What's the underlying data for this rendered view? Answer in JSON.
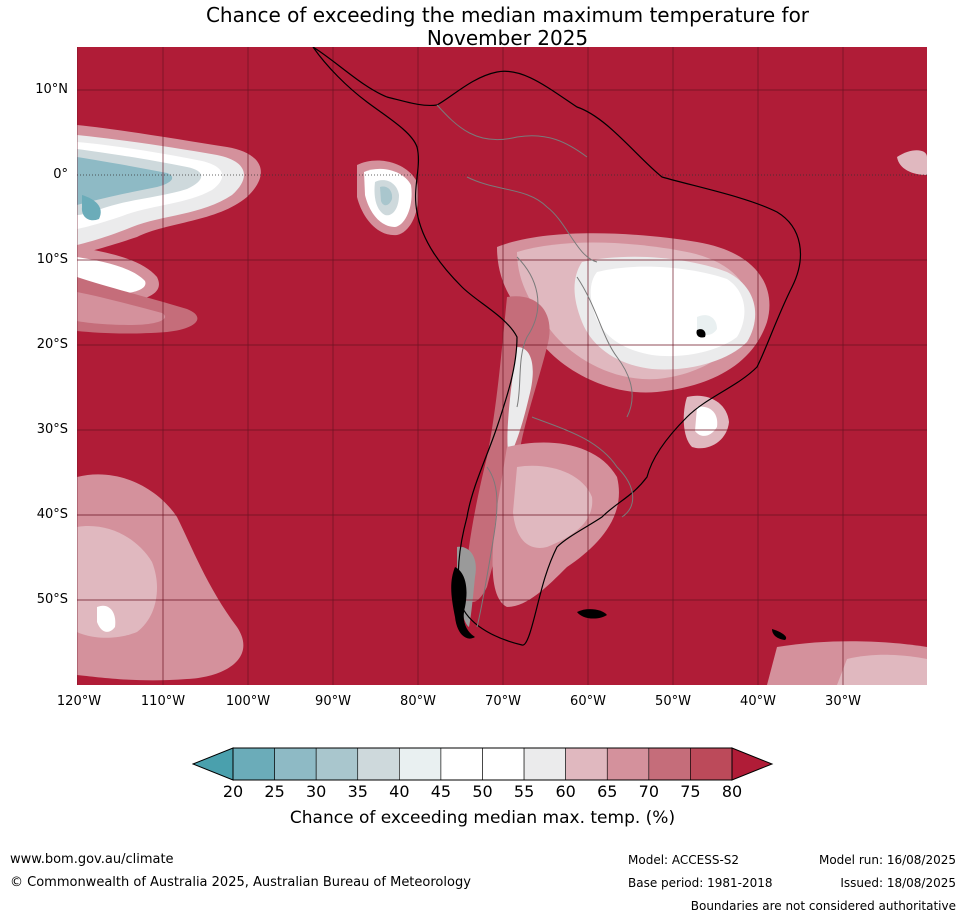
{
  "title_line1": "Chance of exceeding the median maximum temperature for",
  "title_line2": "November 2025",
  "map": {
    "lat_labels": [
      "10°N",
      "0°",
      "10°S",
      "20°S",
      "30°S",
      "40°S",
      "50°S"
    ],
    "lon_labels": [
      "120°W",
      "110°W",
      "100°W",
      "90°W",
      "80°W",
      "70°W",
      "60°W",
      "50°W",
      "40°W",
      "30°W"
    ],
    "colors": {
      "high": "#b01c37",
      "gray_land": "#9a9a9a"
    }
  },
  "colorbar": {
    "ticks": [
      "20",
      "25",
      "30",
      "35",
      "40",
      "45",
      "50",
      "55",
      "60",
      "65",
      "70",
      "75",
      "80"
    ],
    "colors": [
      "#6bacb9",
      "#8ebac5",
      "#a9c6cd",
      "#ced9dc",
      "#e9f0f1",
      "#ffffff",
      "#ffffff",
      "#ebebec",
      "#e0b8bf",
      "#d4919c",
      "#c56d7a",
      "#bc4a5a"
    ],
    "under_color": "#4aa0ad",
    "over_color": "#b01c37",
    "label": "Chance of exceeding median max. temp. (%)"
  },
  "footer": {
    "website": "www.bom.gov.au/climate",
    "copyright": "© Commonwealth of Australia 2025, Australian Bureau of Meteorology",
    "model": "Model: ACCESS-S2",
    "base_period": "Base period: 1981-2018",
    "model_run": "Model run: 16/08/2025",
    "issued": "Issued: 18/08/2025",
    "disclaimer": "Boundaries are not considered authoritative"
  }
}
